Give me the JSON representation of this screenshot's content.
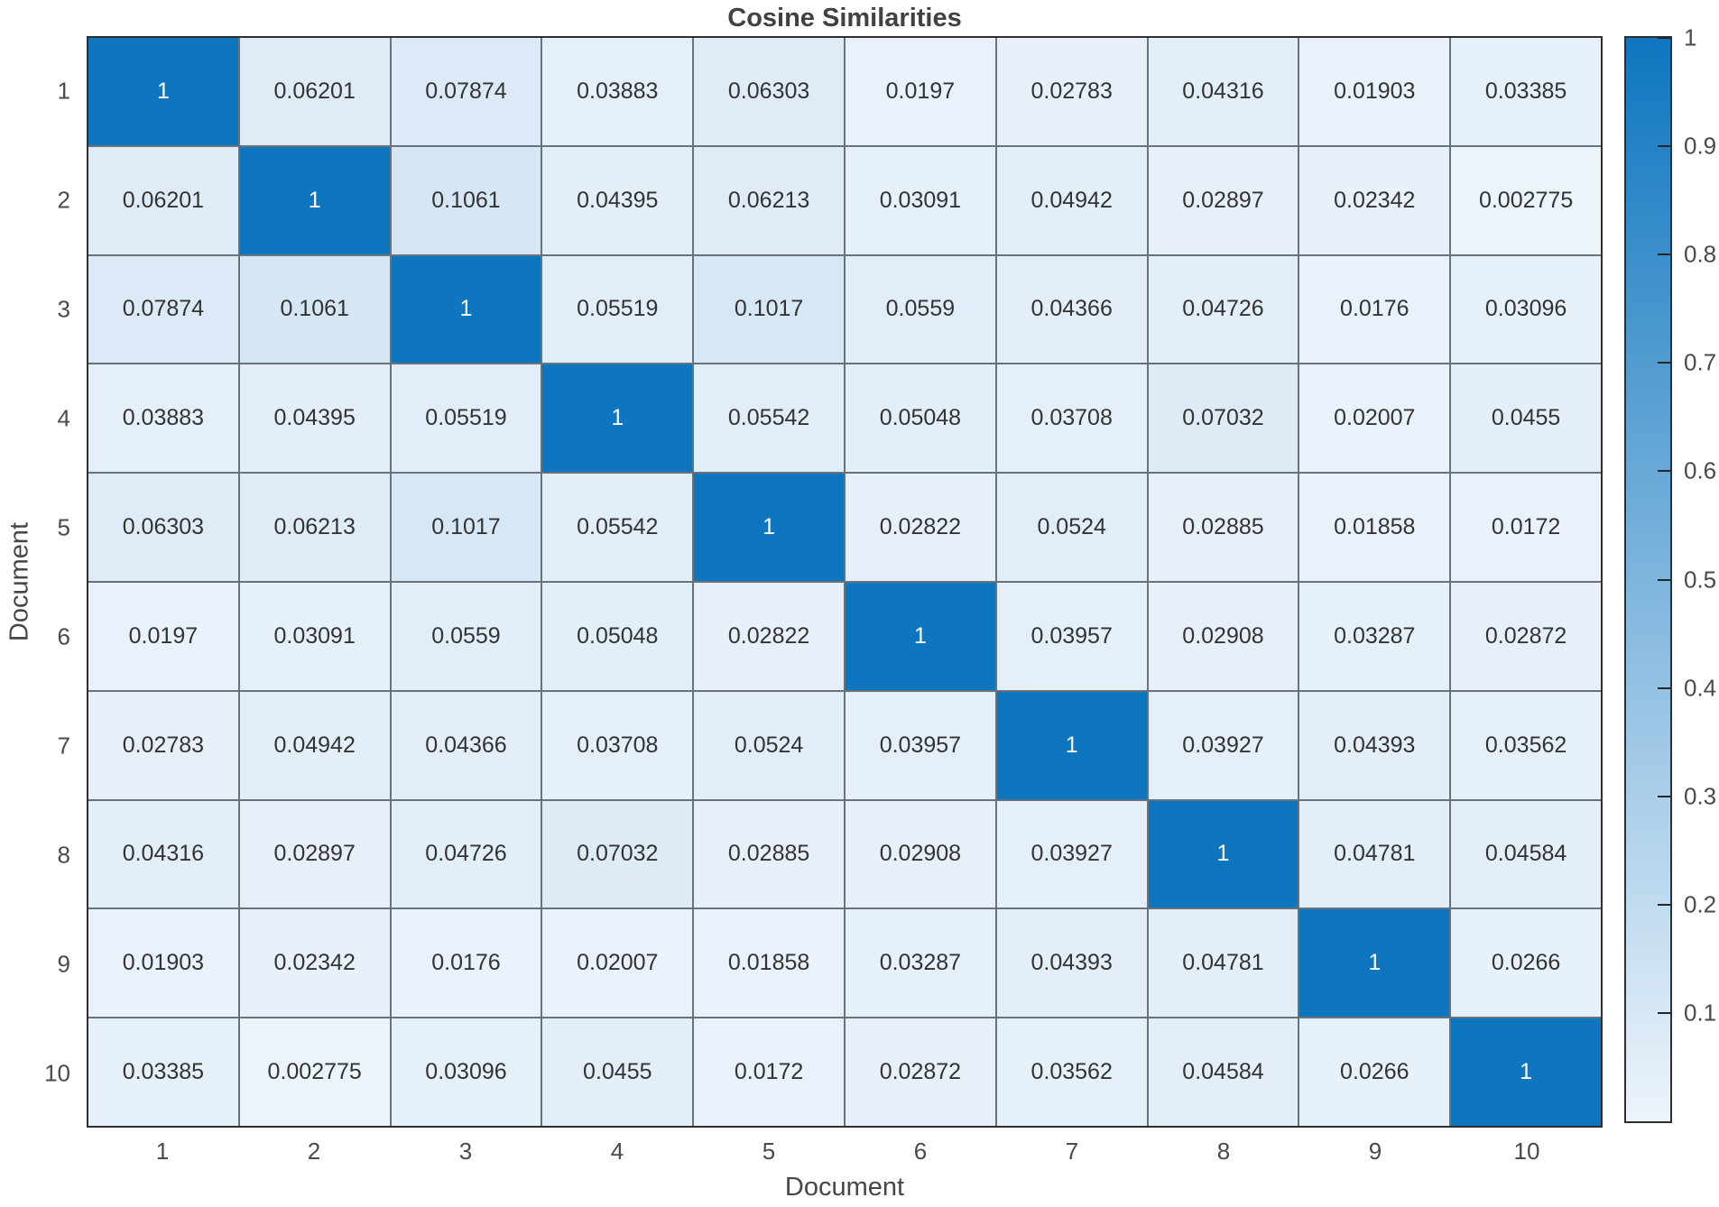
{
  "figure": {
    "title": "Cosine Similarities",
    "background_color": "#ffffff",
    "title_color": "#414141",
    "axis_text_color": "#4a4a4a"
  },
  "chart_data": {
    "type": "heatmap",
    "title": "Cosine Similarities",
    "xlabel": "Document",
    "ylabel": "Document",
    "x_categories": [
      "1",
      "2",
      "3",
      "4",
      "5",
      "6",
      "7",
      "8",
      "9",
      "10"
    ],
    "y_categories": [
      "1",
      "2",
      "3",
      "4",
      "5",
      "6",
      "7",
      "8",
      "9",
      "10"
    ],
    "values": [
      [
        "1",
        "0.06201",
        "0.07874",
        "0.03883",
        "0.06303",
        "0.0197",
        "0.02783",
        "0.04316",
        "0.01903",
        "0.03385"
      ],
      [
        "0.06201",
        "1",
        "0.1061",
        "0.04395",
        "0.06213",
        "0.03091",
        "0.04942",
        "0.02897",
        "0.02342",
        "0.002775"
      ],
      [
        "0.07874",
        "0.1061",
        "1",
        "0.05519",
        "0.1017",
        "0.0559",
        "0.04366",
        "0.04726",
        "0.0176",
        "0.03096"
      ],
      [
        "0.03883",
        "0.04395",
        "0.05519",
        "1",
        "0.05542",
        "0.05048",
        "0.03708",
        "0.07032",
        "0.02007",
        "0.0455"
      ],
      [
        "0.06303",
        "0.06213",
        "0.1017",
        "0.05542",
        "1",
        "0.02822",
        "0.0524",
        "0.02885",
        "0.01858",
        "0.0172"
      ],
      [
        "0.0197",
        "0.03091",
        "0.0559",
        "0.05048",
        "0.02822",
        "1",
        "0.03957",
        "0.02908",
        "0.03287",
        "0.02872"
      ],
      [
        "0.02783",
        "0.04942",
        "0.04366",
        "0.03708",
        "0.0524",
        "0.03957",
        "1",
        "0.03927",
        "0.04393",
        "0.03562"
      ],
      [
        "0.04316",
        "0.02897",
        "0.04726",
        "0.07032",
        "0.02885",
        "0.02908",
        "0.03927",
        "1",
        "0.04781",
        "0.04584"
      ],
      [
        "0.01903",
        "0.02342",
        "0.0176",
        "0.02007",
        "0.01858",
        "0.03287",
        "0.04393",
        "0.04781",
        "1",
        "0.0266"
      ],
      [
        "0.03385",
        "0.002775",
        "0.03096",
        "0.0455",
        "0.0172",
        "0.02872",
        "0.03562",
        "0.04584",
        "0.0266",
        "1"
      ]
    ],
    "clim": [
      0,
      1
    ],
    "grid": true,
    "legend_position": "right-colorbar",
    "colormap": {
      "min_color": "#edf4fb",
      "max_color": "#0e76bf"
    },
    "cell_text_color": "#333333",
    "cell_text_color_on_dark": "#ffffff",
    "colorbar_ticks": [
      {
        "label": "1",
        "value": 1.0
      },
      {
        "label": "0.9",
        "value": 0.9
      },
      {
        "label": "0.8",
        "value": 0.8
      },
      {
        "label": "0.7",
        "value": 0.7
      },
      {
        "label": "0.6",
        "value": 0.6
      },
      {
        "label": "0.5",
        "value": 0.5
      },
      {
        "label": "0.4",
        "value": 0.4
      },
      {
        "label": "0.3",
        "value": 0.3
      },
      {
        "label": "0.2",
        "value": 0.2
      },
      {
        "label": "0.1",
        "value": 0.1
      }
    ]
  }
}
